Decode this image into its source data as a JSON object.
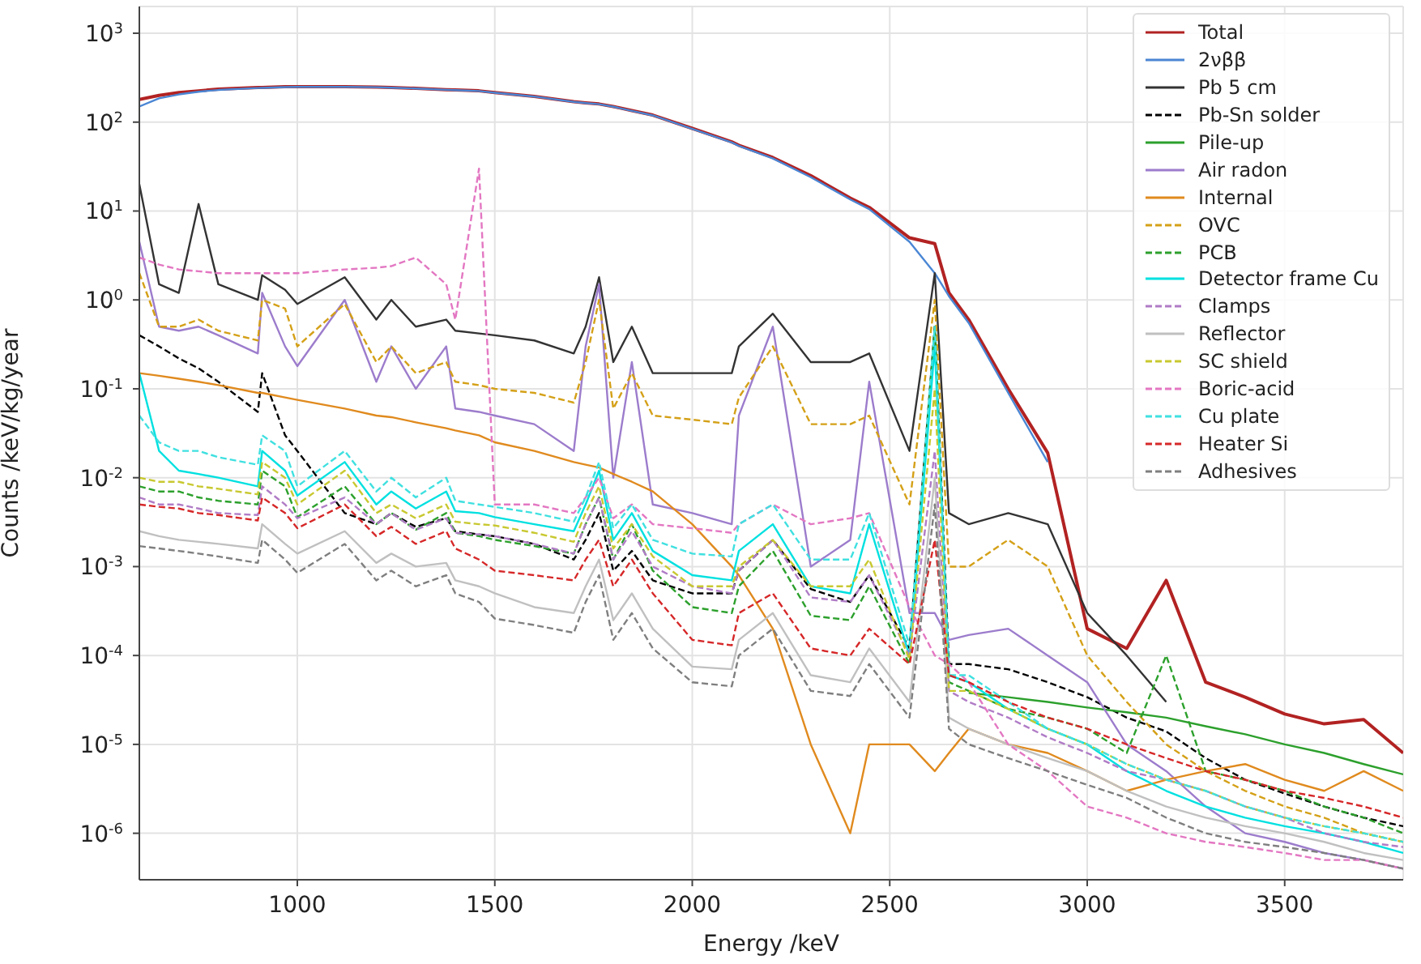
{
  "chart_data": {
    "type": "line",
    "xlabel": "Energy /keV",
    "ylabel": "Counts /keV/kg/year",
    "log": "y",
    "grid": true,
    "legend": "top right",
    "xlim": [
      600,
      3800
    ],
    "xticks": [
      1000,
      1500,
      2000,
      2500,
      3000,
      3500
    ],
    "ylim": [
      3e-07,
      2000
    ],
    "yticks": [
      {
        "value": 1e-06,
        "label": "10$^{-6}$"
      },
      {
        "value": 1e-05,
        "label": "10$^{-5}$"
      },
      {
        "value": 0.0001,
        "label": "10$^{-4}$"
      },
      {
        "value": 0.001,
        "label": "10$^{-3}$"
      },
      {
        "value": 0.01,
        "label": "10$^{-2}$"
      },
      {
        "value": 0.1,
        "label": "10$^{-1}$"
      },
      {
        "value": 1,
        "label": "10$^{0}$"
      },
      {
        "value": 10,
        "label": "10$^{1}$"
      },
      {
        "value": 100,
        "label": "10$^{2}$"
      },
      {
        "value": 1000,
        "label": "10$^{3}$"
      }
    ],
    "x": [
      600,
      650,
      700,
      750,
      800,
      900,
      911,
      969,
      1000,
      1120,
      1200,
      1238,
      1300,
      1377,
      1400,
      1460,
      1500,
      1600,
      1700,
      1730,
      1764,
      1800,
      1847,
      1900,
      2000,
      2100,
      2118,
      2204,
      2300,
      2400,
      2448,
      2550,
      2614,
      2650,
      2700,
      2800,
      2900,
      3000,
      3100,
      3200,
      3300,
      3400,
      3500,
      3600,
      3700,
      3800
    ],
    "series": [
      {
        "name": "Total",
        "color": "#b22222",
        "line_style": "solid",
        "values": [
          180,
          200,
          215,
          225,
          235,
          245,
          245,
          250,
          250,
          250,
          248,
          245,
          240,
          232,
          230,
          225,
          215,
          195,
          170,
          165,
          160,
          150,
          135,
          120,
          85,
          60,
          55,
          40,
          25,
          14,
          11,
          5,
          4.3,
          1.2,
          0.6,
          0.1,
          0.019,
          0.0002,
          0.00012,
          0.0007,
          5e-05,
          3.4e-05,
          2.2e-05,
          1.7e-05,
          1.9e-05,
          8e-06
        ]
      },
      {
        "name": "2νββ",
        "color": "#4a86d4",
        "line_style": "solid",
        "values": [
          150,
          185,
          205,
          220,
          230,
          242,
          243,
          248,
          249,
          249,
          247,
          244,
          239,
          231,
          229,
          224,
          214,
          194,
          169,
          164,
          159,
          149,
          134,
          119,
          84,
          59,
          54,
          39,
          24,
          13.5,
          10.5,
          4.5,
          2,
          1.1,
          0.55,
          0.09,
          0.015,
          null,
          null,
          null,
          null,
          null,
          null,
          null,
          null,
          null
        ]
      },
      {
        "name": "Pb 5 cm",
        "color": "#333333",
        "line_style": "solid",
        "values": [
          20,
          1.5,
          1.2,
          12,
          1.5,
          1.0,
          1.9,
          1.3,
          0.9,
          1.8,
          0.6,
          1.0,
          0.5,
          0.6,
          0.45,
          0.42,
          0.4,
          0.35,
          0.25,
          0.5,
          1.8,
          0.2,
          0.5,
          0.15,
          0.15,
          0.15,
          0.3,
          0.7,
          0.2,
          0.2,
          0.25,
          0.02,
          2,
          0.004,
          0.003,
          0.004,
          0.003,
          0.0003,
          0.0001,
          3e-05,
          null,
          null,
          null,
          null,
          null,
          null
        ]
      },
      {
        "name": "Pb-Sn solder",
        "color": "#000000",
        "line_style": "dashed",
        "values": [
          0.4,
          0.3,
          0.22,
          0.17,
          0.12,
          0.055,
          0.15,
          0.03,
          0.02,
          0.004,
          0.003,
          0.004,
          0.0028,
          0.0035,
          0.0025,
          0.0023,
          0.0022,
          0.0018,
          0.0012,
          0.002,
          0.004,
          0.0009,
          0.0015,
          0.0007,
          0.0005,
          0.0005,
          0.0009,
          0.002,
          0.00056,
          0.0004,
          0.0008,
          0.00012,
          0.5,
          8e-05,
          8e-05,
          7e-05,
          5e-05,
          3.4e-05,
          2e-05,
          1.4e-05,
          7e-06,
          4e-06,
          2.8e-06,
          2e-06,
          1.5e-06,
          1.2e-06
        ]
      },
      {
        "name": "Pile-up",
        "color": "#2ca02c",
        "line_style": "solid",
        "values": [
          null,
          null,
          null,
          null,
          null,
          null,
          null,
          null,
          null,
          null,
          null,
          null,
          null,
          null,
          null,
          null,
          null,
          null,
          null,
          null,
          null,
          null,
          null,
          null,
          null,
          null,
          null,
          null,
          null,
          null,
          null,
          null,
          null,
          null,
          3.8e-05,
          3.4e-05,
          3e-05,
          2.6e-05,
          2.3e-05,
          2e-05,
          1.6e-05,
          1.3e-05,
          1e-05,
          8e-06,
          6e-06,
          4.6e-06
        ]
      },
      {
        "name": "Air radon",
        "color": "#9c7ccc",
        "line_style": "solid",
        "values": [
          4.5,
          0.5,
          0.45,
          0.5,
          0.4,
          0.25,
          1.2,
          0.3,
          0.18,
          1.0,
          0.12,
          0.3,
          0.1,
          0.3,
          0.06,
          0.055,
          0.05,
          0.04,
          0.02,
          0.3,
          1.5,
          0.01,
          0.2,
          0.005,
          0.004,
          0.003,
          0.05,
          0.5,
          0.001,
          0.002,
          0.12,
          0.0003,
          0.0003,
          0.00015,
          0.00017,
          0.0002,
          0.0001,
          5e-05,
          1e-05,
          5e-06,
          2e-06,
          1e-06,
          8e-07,
          6e-07,
          5e-07,
          4e-07
        ]
      },
      {
        "name": "Internal",
        "color": "#e08a1e",
        "line_style": "solid",
        "values": [
          0.15,
          0.14,
          0.13,
          0.12,
          0.11,
          0.09,
          0.09,
          0.08,
          0.075,
          0.06,
          0.05,
          0.048,
          0.042,
          0.036,
          0.034,
          0.03,
          0.025,
          0.02,
          0.015,
          0.014,
          0.013,
          0.011,
          0.009,
          0.007,
          0.003,
          0.001,
          0.0008,
          0.0002,
          1e-05,
          1e-06,
          1e-05,
          1e-05,
          5e-06,
          8e-06,
          1.5e-05,
          1e-05,
          8e-06,
          5e-06,
          3e-06,
          4e-06,
          5e-06,
          6e-06,
          4e-06,
          3e-06,
          5e-06,
          3e-06
        ]
      },
      {
        "name": "OVC",
        "color": "#d4a017",
        "line_style": "dashed",
        "values": [
          2,
          0.5,
          0.5,
          0.6,
          0.45,
          0.35,
          1.0,
          0.8,
          0.3,
          0.9,
          0.2,
          0.3,
          0.15,
          0.2,
          0.12,
          0.11,
          0.1,
          0.09,
          0.07,
          0.2,
          1.0,
          0.06,
          0.15,
          0.05,
          0.045,
          0.04,
          0.08,
          0.3,
          0.04,
          0.04,
          0.05,
          0.005,
          1.0,
          0.001,
          0.001,
          0.002,
          0.001,
          0.0001,
          3e-05,
          1e-05,
          5e-06,
          3e-06,
          2e-06,
          1.5e-06,
          1e-06,
          8e-07
        ]
      },
      {
        "name": "PCB",
        "color": "#2ca02c",
        "line_style": "dashed",
        "values": [
          0.008,
          0.007,
          0.007,
          0.006,
          0.0055,
          0.005,
          0.012,
          0.008,
          0.0036,
          0.008,
          0.003,
          0.004,
          0.0026,
          0.004,
          0.0024,
          0.0022,
          0.002,
          0.0017,
          0.0014,
          0.003,
          0.006,
          0.0012,
          0.003,
          0.0009,
          0.00035,
          0.0003,
          0.0006,
          0.0015,
          0.00028,
          0.00025,
          0.0006,
          8e-05,
          0.5,
          5e-05,
          4e-05,
          2.5e-05,
          2e-05,
          1.5e-05,
          8e-06,
          0.0001,
          5e-06,
          4e-06,
          3e-06,
          2e-06,
          1.5e-06,
          1e-06
        ]
      },
      {
        "name": "Detector frame Cu",
        "color": "#00e0e0",
        "line_style": "solid",
        "values": [
          0.15,
          0.02,
          0.012,
          0.011,
          0.01,
          0.008,
          0.02,
          0.012,
          0.0063,
          0.015,
          0.005,
          0.007,
          0.0045,
          0.007,
          0.0042,
          0.004,
          0.0036,
          0.003,
          0.0025,
          0.005,
          0.012,
          0.002,
          0.004,
          0.0015,
          0.0008,
          0.0007,
          0.0015,
          0.003,
          0.0006,
          0.0005,
          0.003,
          0.0001,
          0.3,
          6e-05,
          5e-05,
          2.5e-05,
          1.5e-05,
          1e-05,
          5e-06,
          3e-06,
          2e-06,
          1.5e-06,
          1.2e-06,
          1e-06,
          8e-07,
          6e-07
        ]
      },
      {
        "name": "Clamps",
        "color": "#b07cc6",
        "line_style": "dashed",
        "values": [
          0.006,
          0.005,
          0.005,
          0.0045,
          0.004,
          0.0038,
          0.008,
          0.005,
          0.0035,
          0.006,
          0.003,
          0.004,
          0.0026,
          0.0035,
          0.0024,
          0.0023,
          0.0022,
          0.0018,
          0.0014,
          0.003,
          0.006,
          0.0012,
          0.0025,
          0.001,
          0.0006,
          0.0005,
          0.0009,
          0.002,
          0.00045,
          0.0004,
          0.0008,
          0.0001,
          0.02,
          4e-05,
          3e-05,
          2e-05,
          1.2e-05,
          8e-06,
          5e-06,
          4e-06,
          3e-06,
          2e-06,
          1.5e-06,
          1e-06,
          8e-07,
          7e-07
        ]
      },
      {
        "name": "Reflector",
        "color": "#c0c0c0",
        "line_style": "solid",
        "values": [
          0.0025,
          0.0022,
          0.002,
          0.0019,
          0.0018,
          0.0016,
          0.003,
          0.0018,
          0.0014,
          0.0025,
          0.0011,
          0.0014,
          0.001,
          0.0011,
          0.0007,
          0.0006,
          0.0005,
          0.00035,
          0.0003,
          0.0006,
          0.0012,
          0.00025,
          0.0005,
          0.0002,
          7.5e-05,
          7e-05,
          0.00015,
          0.0003,
          6e-05,
          5e-05,
          0.00012,
          3e-05,
          0.01,
          2e-05,
          1.5e-05,
          1e-05,
          7e-06,
          5e-06,
          3e-06,
          2e-06,
          1.5e-06,
          1.2e-06,
          1e-06,
          8e-07,
          6e-07,
          5e-07
        ]
      },
      {
        "name": "SC shield",
        "color": "#c8c830",
        "line_style": "dashed",
        "values": [
          0.01,
          0.009,
          0.009,
          0.008,
          0.0075,
          0.0065,
          0.015,
          0.01,
          0.005,
          0.012,
          0.004,
          0.005,
          0.0035,
          0.005,
          0.0032,
          0.003,
          0.0029,
          0.0024,
          0.0019,
          0.004,
          0.008,
          0.0016,
          0.003,
          0.0013,
          0.0006,
          0.0006,
          0.001,
          0.002,
          0.0006,
          0.0006,
          0.0012,
          9e-05,
          0.1,
          4e-05,
          4e-05,
          2.5e-05,
          1.5e-05,
          1e-05,
          6e-06,
          4e-06,
          3e-06,
          2e-06,
          1.5e-06,
          1.2e-06,
          1e-06,
          8e-07
        ]
      },
      {
        "name": "Boric-acid",
        "color": "#e377c2",
        "line_style": "dashed",
        "values": [
          3.0,
          2.5,
          2.2,
          2.1,
          2.0,
          2.0,
          2.0,
          2.0,
          2.0,
          2.2,
          2.3,
          2.4,
          3.0,
          1.5,
          0.6,
          30,
          0.005,
          0.005,
          0.004,
          0.006,
          0.01,
          0.0035,
          0.005,
          0.003,
          0.0027,
          0.0024,
          0.003,
          0.005,
          0.003,
          0.0035,
          0.004,
          0.00035,
          0.0001,
          8e-05,
          5e-05,
          1e-05,
          5e-06,
          2e-06,
          1.5e-06,
          1e-06,
          8e-07,
          7e-07,
          6e-07,
          5e-07,
          5e-07,
          4e-07
        ]
      },
      {
        "name": "Cu plate",
        "color": "#40e0e0",
        "line_style": "dashed",
        "values": [
          0.05,
          0.025,
          0.02,
          0.02,
          0.017,
          0.014,
          0.03,
          0.02,
          0.008,
          0.02,
          0.007,
          0.01,
          0.006,
          0.01,
          0.0055,
          0.005,
          0.0047,
          0.004,
          0.0032,
          0.006,
          0.015,
          0.0027,
          0.005,
          0.002,
          0.0014,
          0.0013,
          0.003,
          0.005,
          0.0012,
          0.0012,
          0.004,
          0.00013,
          0.5,
          6e-05,
          6e-05,
          3e-05,
          1.5e-05,
          1e-05,
          6e-06,
          4e-06,
          3e-06,
          2e-06,
          1.5e-06,
          1.2e-06,
          1e-06,
          8e-07
        ]
      },
      {
        "name": "Heater Si",
        "color": "#d62728",
        "line_style": "dashed",
        "values": [
          0.005,
          0.0047,
          0.0045,
          0.004,
          0.0038,
          0.0033,
          0.006,
          0.004,
          0.0027,
          0.005,
          0.0022,
          0.0028,
          0.0018,
          0.0025,
          0.0016,
          0.0012,
          0.0009,
          0.0008,
          0.0007,
          0.0012,
          0.002,
          0.0006,
          0.0012,
          0.0005,
          0.00015,
          0.00013,
          0.0003,
          0.0005,
          0.00012,
          0.0001,
          0.0002,
          8e-05,
          0.002,
          6e-05,
          5e-05,
          3e-05,
          2e-05,
          1.5e-05,
          1e-05,
          7e-06,
          5e-06,
          4e-06,
          3e-06,
          2.5e-06,
          2e-06,
          1.5e-06
        ]
      },
      {
        "name": "Adhesives",
        "color": "#7f7f7f",
        "line_style": "dashed",
        "values": [
          0.0017,
          0.0016,
          0.0015,
          0.0014,
          0.0013,
          0.0011,
          0.002,
          0.0012,
          0.00085,
          0.0018,
          0.0007,
          0.0009,
          0.0006,
          0.0008,
          0.0005,
          0.0004,
          0.00026,
          0.00022,
          0.00018,
          0.0004,
          0.0008,
          0.00015,
          0.0003,
          0.00012,
          5e-05,
          4.5e-05,
          0.0001,
          0.0002,
          4e-05,
          3.5e-05,
          8e-05,
          2e-05,
          0.005,
          1.5e-05,
          1e-05,
          7e-06,
          5e-06,
          3.5e-06,
          2.5e-06,
          1.5e-06,
          1e-06,
          8e-07,
          7e-07,
          6e-07,
          5e-07,
          4e-07
        ]
      }
    ]
  }
}
